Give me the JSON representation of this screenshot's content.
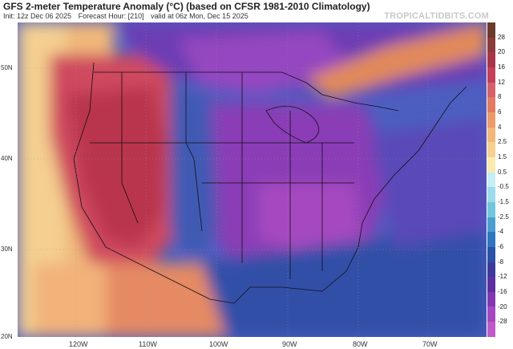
{
  "header": {
    "title": "GFS 2-meter Temperature Anomaly (°C) (based on CFSR 1981-2010 Climatology)",
    "init": "Init: 12z Dec 06 2025",
    "forecast_hour": "Forecast Hour: [210]",
    "valid": "valid at 06z Mon, Dec 15 2025",
    "brand": "TROPICALTIDBITS.COM"
  },
  "map": {
    "lat_labels": [
      "50N",
      "40N",
      "30N",
      "20N"
    ],
    "lon_labels": [
      "120W",
      "110W",
      "100W",
      "90W",
      "80W",
      "70W"
    ]
  },
  "colorbar": {
    "ticks": [
      "28",
      "20",
      "16",
      "12",
      "8",
      "6",
      "4",
      "2.5",
      "1.5",
      "0.5",
      "-0.5",
      "-1.5",
      "-2.5",
      "-4",
      "-6",
      "-8",
      "-12",
      "-16",
      "-20",
      "-28"
    ],
    "colors": [
      "#6b3a2a",
      "#8c3b3b",
      "#a8354a",
      "#c4405a",
      "#d4606a",
      "#e07a62",
      "#eb9a6a",
      "#f2b87a",
      "#f6d08e",
      "#faeab0",
      "#c6eef5",
      "#9cdcea",
      "#72c6dc",
      "#4a9ed0",
      "#2e76c0",
      "#2a52a8",
      "#3c3a9a",
      "#5c30a0",
      "#8238b0",
      "#a448c0",
      "#c05ac8"
    ]
  }
}
